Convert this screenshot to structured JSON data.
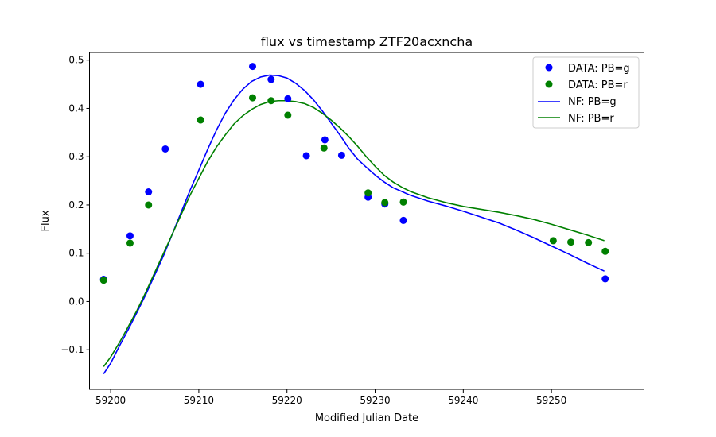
{
  "chart_data": {
    "type": "scatter",
    "title": "flux vs timestamp ZTF20acxncha",
    "xlabel": "Modified Julian Date",
    "ylabel": "Flux",
    "xlim": [
      59197.6,
      59260.5
    ],
    "ylim": [
      -0.182,
      0.516
    ],
    "xticks": [
      59200,
      59210,
      59220,
      59230,
      59240,
      59250
    ],
    "yticks": [
      -0.1,
      0.0,
      0.1,
      0.2,
      0.3,
      0.4,
      0.5
    ],
    "ytick_labels": [
      "−0.1",
      "0.0",
      "0.1",
      "0.2",
      "0.3",
      "0.4",
      "0.5"
    ],
    "legend_position": "top-right",
    "grid": false,
    "scatter_series": [
      {
        "name": "DATA: PB=g",
        "color": "#0000ff",
        "points": [
          [
            59199.2,
            0.046
          ],
          [
            59202.2,
            0.136
          ],
          [
            59204.3,
            0.227
          ],
          [
            59206.2,
            0.316
          ],
          [
            59210.2,
            0.45
          ],
          [
            59216.1,
            0.487
          ],
          [
            59218.2,
            0.46
          ],
          [
            59220.1,
            0.42
          ],
          [
            59222.2,
            0.302
          ],
          [
            59224.3,
            0.335
          ],
          [
            59226.2,
            0.303
          ],
          [
            59229.2,
            0.216
          ],
          [
            59231.1,
            0.202
          ],
          [
            59233.2,
            0.168
          ],
          [
            59256.1,
            0.047
          ]
        ]
      },
      {
        "name": "DATA: PB=r",
        "color": "#008000",
        "points": [
          [
            59199.2,
            0.044
          ],
          [
            59202.2,
            0.121
          ],
          [
            59204.3,
            0.2
          ],
          [
            59210.2,
            0.376
          ],
          [
            59216.1,
            0.422
          ],
          [
            59218.2,
            0.416
          ],
          [
            59220.1,
            0.386
          ],
          [
            59224.2,
            0.318
          ],
          [
            59229.2,
            0.225
          ],
          [
            59231.1,
            0.205
          ],
          [
            59233.2,
            0.206
          ],
          [
            59250.2,
            0.126
          ],
          [
            59252.2,
            0.123
          ],
          [
            59254.2,
            0.122
          ],
          [
            59256.1,
            0.104
          ]
        ]
      }
    ],
    "line_series": [
      {
        "name": "NF: PB=g",
        "color": "#0000ff",
        "points": [
          [
            59199.2,
            -0.15
          ],
          [
            59200.0,
            -0.128
          ],
          [
            59201.0,
            -0.092
          ],
          [
            59202.0,
            -0.058
          ],
          [
            59203.0,
            -0.022
          ],
          [
            59204.0,
            0.015
          ],
          [
            59205.0,
            0.055
          ],
          [
            59206.0,
            0.095
          ],
          [
            59207.0,
            0.14
          ],
          [
            59208.0,
            0.185
          ],
          [
            59209.0,
            0.23
          ],
          [
            59210.0,
            0.272
          ],
          [
            59211.0,
            0.315
          ],
          [
            59212.0,
            0.355
          ],
          [
            59213.0,
            0.39
          ],
          [
            59214.0,
            0.418
          ],
          [
            59215.0,
            0.44
          ],
          [
            59216.0,
            0.456
          ],
          [
            59217.0,
            0.465
          ],
          [
            59218.0,
            0.469
          ],
          [
            59219.0,
            0.468
          ],
          [
            59220.0,
            0.463
          ],
          [
            59221.0,
            0.452
          ],
          [
            59222.0,
            0.437
          ],
          [
            59223.0,
            0.418
          ],
          [
            59224.0,
            0.395
          ],
          [
            59225.0,
            0.37
          ],
          [
            59226.0,
            0.345
          ],
          [
            59227.0,
            0.318
          ],
          [
            59228.0,
            0.295
          ],
          [
            59229.0,
            0.278
          ],
          [
            59230.0,
            0.262
          ],
          [
            59231.0,
            0.248
          ],
          [
            59232.0,
            0.236
          ],
          [
            59234.0,
            0.22
          ],
          [
            59236.0,
            0.208
          ],
          [
            59238.0,
            0.198
          ],
          [
            59240.0,
            0.187
          ],
          [
            59242.0,
            0.175
          ],
          [
            59244.0,
            0.163
          ],
          [
            59246.0,
            0.148
          ],
          [
            59248.0,
            0.132
          ],
          [
            59250.0,
            0.115
          ],
          [
            59252.0,
            0.098
          ],
          [
            59254.0,
            0.08
          ],
          [
            59256.0,
            0.063
          ]
        ]
      },
      {
        "name": "NF: PB=r",
        "color": "#008000",
        "points": [
          [
            59199.2,
            -0.135
          ],
          [
            59200.0,
            -0.115
          ],
          [
            59201.0,
            -0.085
          ],
          [
            59202.0,
            -0.052
          ],
          [
            59203.0,
            -0.018
          ],
          [
            59204.0,
            0.02
          ],
          [
            59205.0,
            0.06
          ],
          [
            59206.0,
            0.1
          ],
          [
            59207.0,
            0.14
          ],
          [
            59208.0,
            0.18
          ],
          [
            59209.0,
            0.22
          ],
          [
            59210.0,
            0.255
          ],
          [
            59211.0,
            0.29
          ],
          [
            59212.0,
            0.32
          ],
          [
            59213.0,
            0.345
          ],
          [
            59214.0,
            0.368
          ],
          [
            59215.0,
            0.385
          ],
          [
            59216.0,
            0.398
          ],
          [
            59217.0,
            0.408
          ],
          [
            59218.0,
            0.414
          ],
          [
            59219.0,
            0.416
          ],
          [
            59220.0,
            0.416
          ],
          [
            59221.0,
            0.414
          ],
          [
            59222.0,
            0.41
          ],
          [
            59223.0,
            0.402
          ],
          [
            59224.0,
            0.39
          ],
          [
            59225.0,
            0.376
          ],
          [
            59226.0,
            0.36
          ],
          [
            59227.0,
            0.342
          ],
          [
            59228.0,
            0.322
          ],
          [
            59229.0,
            0.3
          ],
          [
            59230.0,
            0.28
          ],
          [
            59231.0,
            0.262
          ],
          [
            59232.0,
            0.248
          ],
          [
            59233.0,
            0.237
          ],
          [
            59234.0,
            0.228
          ],
          [
            59236.0,
            0.215
          ],
          [
            59238.0,
            0.205
          ],
          [
            59240.0,
            0.197
          ],
          [
            59242.0,
            0.191
          ],
          [
            59244.0,
            0.185
          ],
          [
            59246.0,
            0.178
          ],
          [
            59248.0,
            0.17
          ],
          [
            59250.0,
            0.16
          ],
          [
            59252.0,
            0.149
          ],
          [
            59254.0,
            0.138
          ],
          [
            59256.0,
            0.126
          ]
        ]
      }
    ]
  }
}
